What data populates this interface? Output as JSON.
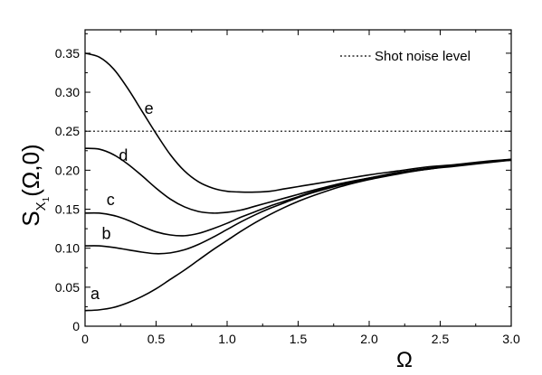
{
  "chart_data": {
    "type": "line",
    "xlabel": "Ω",
    "ylabel": {
      "main": "S",
      "sub": "X",
      "subsub": "1",
      "args": "(Ω,0)"
    },
    "xlim": [
      0,
      3.0
    ],
    "ylim": [
      0,
      0.38
    ],
    "x_ticks": [
      "0",
      "0.5",
      "1.0",
      "1.5",
      "2.0",
      "2.5",
      "3.0"
    ],
    "x_tick_values": [
      0,
      0.5,
      1.0,
      1.5,
      2.0,
      2.5,
      3.0
    ],
    "y_ticks": [
      "0",
      "0.05",
      "0.10",
      "0.15",
      "0.20",
      "0.25",
      "0.30",
      "0.35"
    ],
    "y_tick_values": [
      0,
      0.05,
      0.1,
      0.15,
      0.2,
      0.25,
      0.3,
      0.35
    ],
    "grid": false,
    "legend": {
      "position": "top-right",
      "entries": [
        {
          "label": "Shot noise level",
          "style": "dotted"
        }
      ]
    },
    "reference_line": {
      "name": "Shot noise level",
      "y": 0.25,
      "style": "dotted"
    },
    "series": [
      {
        "label": "a",
        "label_at": [
          0.07,
          0.035
        ],
        "x": [
          0,
          0.1,
          0.2,
          0.3,
          0.4,
          0.5,
          0.6,
          0.7,
          0.8,
          0.9,
          1.0,
          1.1,
          1.2,
          1.3,
          1.4,
          1.5,
          1.6,
          1.8,
          2.0,
          2.2,
          2.4,
          2.6,
          2.8,
          3.0
        ],
        "y": [
          0.02,
          0.021,
          0.024,
          0.03,
          0.038,
          0.048,
          0.06,
          0.072,
          0.085,
          0.098,
          0.11,
          0.122,
          0.133,
          0.143,
          0.152,
          0.16,
          0.167,
          0.179,
          0.188,
          0.195,
          0.201,
          0.205,
          0.209,
          0.213
        ]
      },
      {
        "label": "b",
        "label_at": [
          0.15,
          0.112
        ],
        "x": [
          0,
          0.1,
          0.2,
          0.3,
          0.4,
          0.5,
          0.6,
          0.7,
          0.8,
          0.9,
          1.0,
          1.1,
          1.2,
          1.3,
          1.4,
          1.5,
          1.6,
          1.8,
          2.0,
          2.2,
          2.4,
          2.6,
          2.8,
          3.0
        ],
        "y": [
          0.103,
          0.103,
          0.101,
          0.098,
          0.095,
          0.093,
          0.094,
          0.098,
          0.105,
          0.114,
          0.124,
          0.134,
          0.143,
          0.151,
          0.158,
          0.165,
          0.171,
          0.181,
          0.189,
          0.196,
          0.201,
          0.206,
          0.21,
          0.213
        ]
      },
      {
        "label": "c",
        "label_at": [
          0.18,
          0.155
        ],
        "x": [
          0,
          0.1,
          0.2,
          0.3,
          0.4,
          0.5,
          0.6,
          0.7,
          0.8,
          0.9,
          1.0,
          1.1,
          1.2,
          1.3,
          1.4,
          1.5,
          1.6,
          1.8,
          2.0,
          2.2,
          2.4,
          2.6,
          2.8,
          3.0
        ],
        "y": [
          0.145,
          0.145,
          0.142,
          0.136,
          0.128,
          0.121,
          0.117,
          0.116,
          0.119,
          0.125,
          0.132,
          0.14,
          0.147,
          0.154,
          0.16,
          0.166,
          0.172,
          0.182,
          0.19,
          0.196,
          0.202,
          0.206,
          0.21,
          0.213
        ]
      },
      {
        "label": "d",
        "label_at": [
          0.27,
          0.212
        ],
        "x": [
          0,
          0.1,
          0.2,
          0.3,
          0.4,
          0.5,
          0.6,
          0.7,
          0.8,
          0.9,
          1.0,
          1.1,
          1.2,
          1.3,
          1.4,
          1.5,
          1.6,
          1.8,
          2.0,
          2.2,
          2.4,
          2.6,
          2.8,
          3.0
        ],
        "y": [
          0.228,
          0.227,
          0.22,
          0.208,
          0.193,
          0.177,
          0.163,
          0.153,
          0.147,
          0.145,
          0.146,
          0.149,
          0.154,
          0.159,
          0.164,
          0.169,
          0.174,
          0.183,
          0.19,
          0.197,
          0.202,
          0.206,
          0.21,
          0.214
        ]
      },
      {
        "label": "e",
        "label_at": [
          0.45,
          0.272
        ],
        "x": [
          0,
          0.1,
          0.2,
          0.3,
          0.4,
          0.5,
          0.6,
          0.7,
          0.8,
          0.9,
          1.0,
          1.1,
          1.2,
          1.3,
          1.4,
          1.5,
          1.6,
          1.8,
          2.0,
          2.2,
          2.4,
          2.6,
          2.8,
          3.0
        ],
        "y": [
          0.35,
          0.345,
          0.33,
          0.305,
          0.276,
          0.247,
          0.22,
          0.199,
          0.185,
          0.177,
          0.173,
          0.172,
          0.172,
          0.173,
          0.176,
          0.179,
          0.182,
          0.188,
          0.194,
          0.199,
          0.204,
          0.207,
          0.211,
          0.214
        ]
      }
    ]
  }
}
